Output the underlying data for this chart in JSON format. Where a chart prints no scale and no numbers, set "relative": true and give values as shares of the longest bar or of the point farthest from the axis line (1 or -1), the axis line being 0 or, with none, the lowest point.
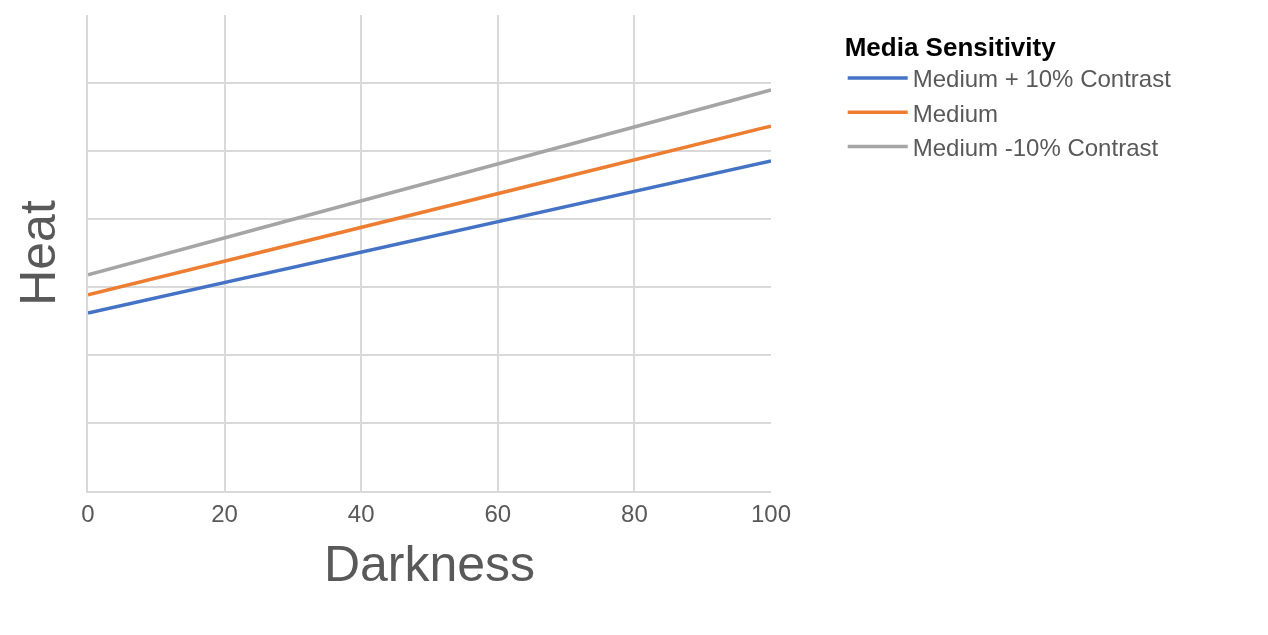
{
  "chart_data": {
    "type": "line",
    "xlabel": "Darkness",
    "ylabel": "Heat",
    "legend_title": "Media Sensitivity",
    "x": [
      0,
      100
    ],
    "xlim": [
      0,
      100
    ],
    "xticks": [
      0,
      20,
      40,
      60,
      80,
      100
    ],
    "relative": true,
    "grid": true,
    "legend": "top right",
    "marker": "none",
    "line_style": "solid",
    "series": [
      {
        "name": "Medium + 10% Contrast",
        "color": "#4472c4",
        "values": [
          0.444,
          0.823
        ]
      },
      {
        "name": "Medium",
        "color": "#ed7d31",
        "values": [
          0.489,
          0.91
        ]
      },
      {
        "name": "Medium -10% Contrast",
        "color": "#a5a5a5",
        "values": [
          0.539,
          1.0
        ]
      }
    ]
  }
}
